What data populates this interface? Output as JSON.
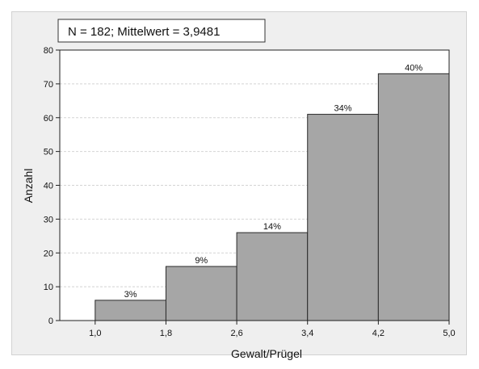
{
  "chart_data": {
    "type": "bar",
    "subtype": "histogram",
    "annotation": "N = 182; Mittelwert = 3,9481",
    "xlabel": "Gewalt/Prügel",
    "ylabel": "Anzahl",
    "bin_edges": [
      1.0,
      1.8,
      2.6,
      3.4,
      4.2,
      5.0
    ],
    "bin_edge_labels": [
      "1,0",
      "1,8",
      "2,6",
      "3,4",
      "4,2",
      "5,0"
    ],
    "values": [
      6,
      16,
      26,
      61,
      73
    ],
    "percent_labels": [
      "3%",
      "9%",
      "14%",
      "34%",
      "40%"
    ],
    "ylim": [
      0,
      80
    ],
    "yticks": [
      0,
      10,
      20,
      30,
      40,
      50,
      60,
      70,
      80
    ],
    "xlim": [
      0.6,
      5.0
    ],
    "grid": "horizontal",
    "bar_color": "#a6a6a6",
    "plot_background": "#ffffff",
    "frame_background": "#efefef"
  }
}
